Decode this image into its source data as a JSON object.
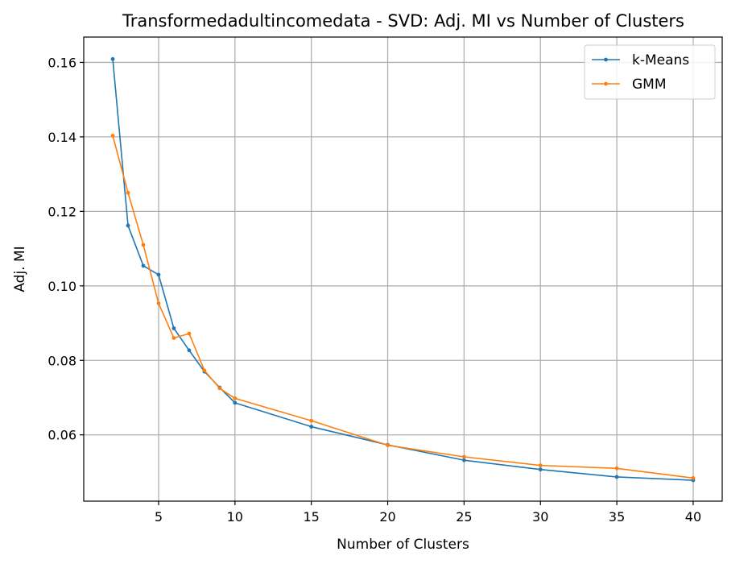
{
  "chart_data": {
    "type": "line",
    "title": "Transformedadultincomedata - SVD: Adj. MI vs Number of Clusters",
    "xlabel": "Number of Clusters",
    "ylabel": "Adj. MI",
    "xlim": [
      0.1,
      41.9
    ],
    "ylim": [
      0.0422,
      0.1668
    ],
    "xticks": [
      5,
      10,
      15,
      20,
      25,
      30,
      35,
      40
    ],
    "yticks": [
      0.06,
      0.08,
      0.1,
      0.12,
      0.14,
      0.16
    ],
    "ytick_labels": [
      "0.06",
      "0.08",
      "0.10",
      "0.12",
      "0.14",
      "0.16"
    ],
    "grid": true,
    "legend_position": "top-right",
    "x": [
      2,
      3,
      4,
      5,
      6,
      7,
      8,
      9,
      10,
      15,
      20,
      25,
      30,
      35,
      40
    ],
    "series": [
      {
        "name": "k-Means",
        "color": "#1f77b4",
        "values": [
          0.1609,
          0.1162,
          0.1054,
          0.103,
          0.0886,
          0.0827,
          0.077,
          0.0727,
          0.0686,
          0.0622,
          0.0573,
          0.0532,
          0.0507,
          0.0487,
          0.0478
        ]
      },
      {
        "name": "GMM",
        "color": "#ff7f0e",
        "values": [
          0.1403,
          0.125,
          0.111,
          0.0953,
          0.086,
          0.0872,
          0.0773,
          0.0725,
          0.0698,
          0.0638,
          0.0572,
          0.0541,
          0.0518,
          0.051,
          0.0484
        ]
      }
    ]
  }
}
